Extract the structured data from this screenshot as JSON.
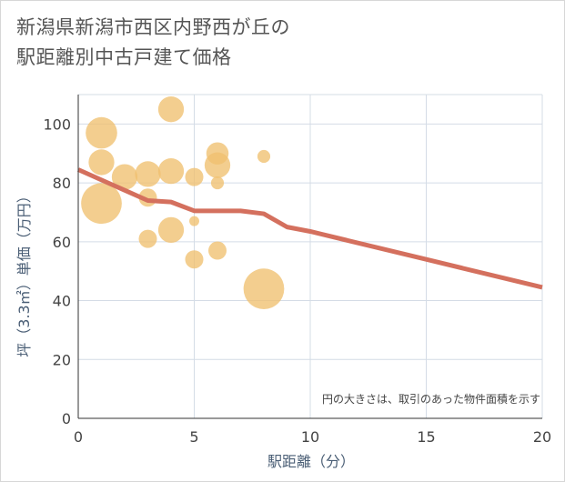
{
  "title_line1": "新潟県新潟市西区内野西が丘の",
  "title_line2": "駅距離別中古戸建て価格",
  "chart_data": {
    "type": "scatter",
    "xlabel": "駅距離（分）",
    "ylabel": "坪（3.3㎡）単価（万円）",
    "xlim": [
      0,
      20
    ],
    "ylim": [
      0,
      110
    ],
    "xticks": [
      "0",
      "5",
      "10",
      "15",
      "20"
    ],
    "yticks": [
      "0",
      "20",
      "40",
      "60",
      "80",
      "100"
    ],
    "xtick_values": [
      0,
      5,
      10,
      15,
      20
    ],
    "ytick_values": [
      0,
      20,
      40,
      60,
      80,
      100
    ],
    "grid": true,
    "note": "円の大きさは、取引のあった物件面積を示す",
    "bubble_color": "#f0c070",
    "line_color": "#d4705e",
    "points": [
      {
        "x": 1,
        "y": 97,
        "size": 3
      },
      {
        "x": 1,
        "y": 87,
        "size": 2
      },
      {
        "x": 1,
        "y": 73,
        "size": 5
      },
      {
        "x": 2,
        "y": 82,
        "size": 2
      },
      {
        "x": 3,
        "y": 83,
        "size": 2
      },
      {
        "x": 3,
        "y": 75,
        "size": 1
      },
      {
        "x": 3,
        "y": 61,
        "size": 1
      },
      {
        "x": 4,
        "y": 105,
        "size": 2
      },
      {
        "x": 4,
        "y": 84,
        "size": 2
      },
      {
        "x": 4,
        "y": 64,
        "size": 2
      },
      {
        "x": 5,
        "y": 82,
        "size": 1
      },
      {
        "x": 5,
        "y": 67,
        "size": 0.3
      },
      {
        "x": 5,
        "y": 54,
        "size": 1
      },
      {
        "x": 6,
        "y": 90,
        "size": 1.5
      },
      {
        "x": 6,
        "y": 86,
        "size": 2
      },
      {
        "x": 6,
        "y": 80,
        "size": 0.5
      },
      {
        "x": 6,
        "y": 57,
        "size": 1
      },
      {
        "x": 8,
        "y": 89,
        "size": 0.5
      },
      {
        "x": 8,
        "y": 44,
        "size": 5
      }
    ],
    "trend": {
      "x": [
        0,
        1,
        2,
        3,
        4,
        5,
        6,
        7,
        8,
        9,
        10,
        15,
        20
      ],
      "y": [
        84.5,
        81,
        77.5,
        74,
        73.5,
        70.5,
        70.5,
        70.5,
        69.5,
        65,
        63.5,
        54,
        44.5
      ]
    }
  }
}
